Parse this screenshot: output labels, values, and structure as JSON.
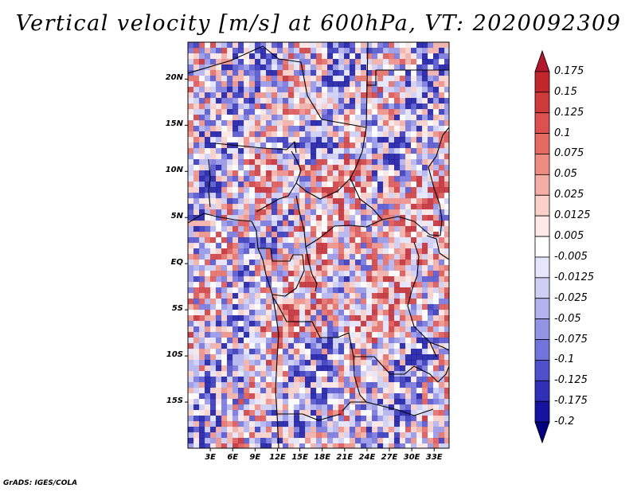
{
  "title": "Vertical velocity [m/s] at 600hPa, VT: 2020092309",
  "credit": "GrADS: IGES/COLA",
  "map": {
    "lon_range": [
      0,
      35
    ],
    "lat_range": [
      -20,
      24
    ],
    "lat_ticks": [
      {
        "value": 20,
        "label": "20N"
      },
      {
        "value": 15,
        "label": "15N"
      },
      {
        "value": 10,
        "label": "10N"
      },
      {
        "value": 5,
        "label": "5N"
      },
      {
        "value": 0,
        "label": "EQ"
      },
      {
        "value": -5,
        "label": "5S"
      },
      {
        "value": -10,
        "label": "10S"
      },
      {
        "value": -15,
        "label": "15S"
      }
    ],
    "lon_ticks": [
      {
        "value": 3,
        "label": "3E"
      },
      {
        "value": 6,
        "label": "6E"
      },
      {
        "value": 9,
        "label": "9E"
      },
      {
        "value": 12,
        "label": "12E"
      },
      {
        "value": 15,
        "label": "15E"
      },
      {
        "value": 18,
        "label": "18E"
      },
      {
        "value": 21,
        "label": "21E"
      },
      {
        "value": 24,
        "label": "24E"
      },
      {
        "value": 27,
        "label": "27E"
      },
      {
        "value": 30,
        "label": "30E"
      },
      {
        "value": 33,
        "label": "33E"
      }
    ]
  },
  "colorbar": {
    "labels": [
      "0.175",
      "0.15",
      "0.125",
      "0.1",
      "0.075",
      "0.05",
      "0.025",
      "0.0125",
      "0.005",
      "-0.005",
      "-0.0125",
      "-0.025",
      "-0.05",
      "-0.075",
      "-0.1",
      "-0.125",
      "-0.175",
      "-0.2"
    ],
    "colors": [
      "#b2182b",
      "#c1272d",
      "#cf3a3a",
      "#dc5050",
      "#e56a62",
      "#ee8c82",
      "#f5aea5",
      "#fad0c9",
      "#fde9e5",
      "#ffffff",
      "#e6e6fb",
      "#cfcff5",
      "#b3b3ee",
      "#9494e6",
      "#7373dc",
      "#5050cc",
      "#3030b8",
      "#1414a0",
      "#000080"
    ]
  }
}
